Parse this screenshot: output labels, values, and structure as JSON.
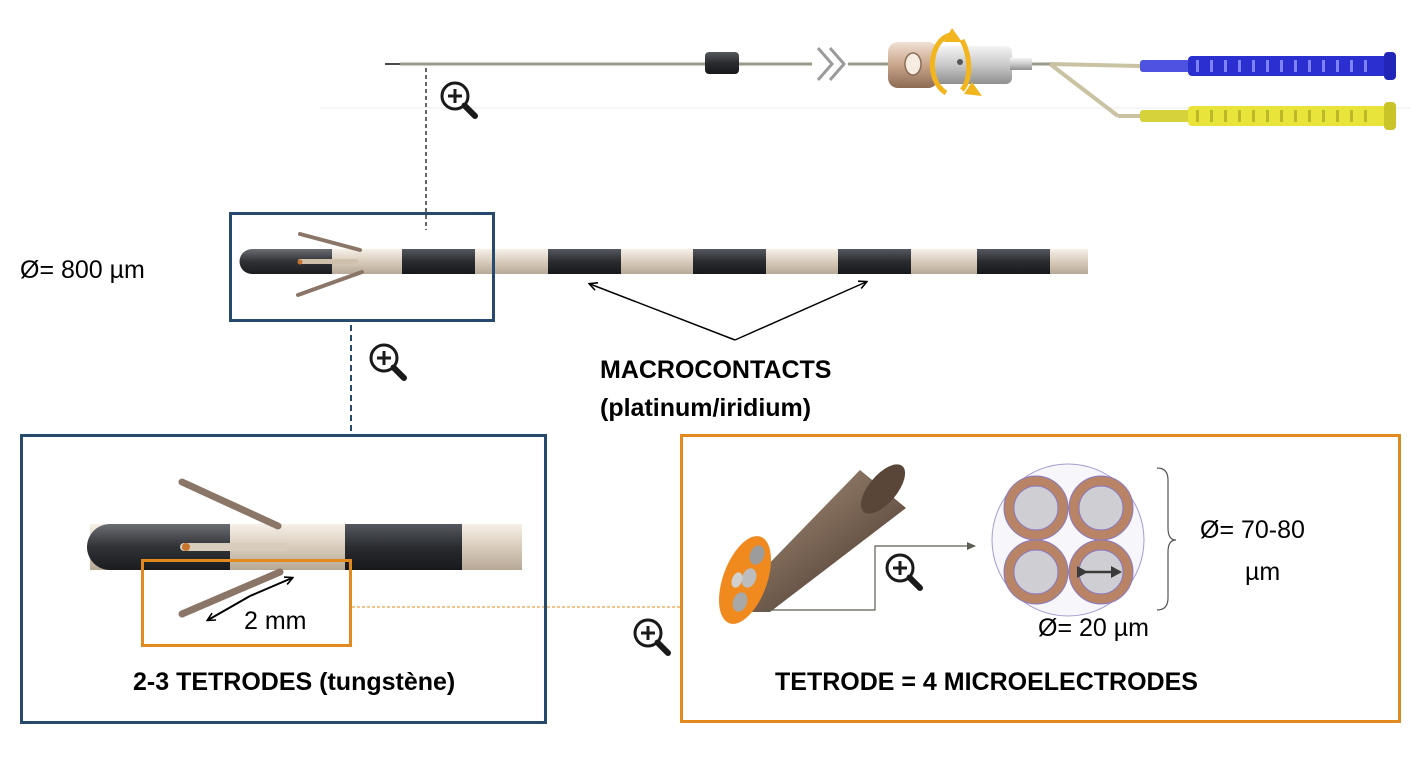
{
  "labels": {
    "probe_diameter": "Ø= 800 µm",
    "macrocontacts_title": "MACROCONTACTS",
    "macrocontacts_material": "(platinum/iridium)",
    "tetrode_spacing": "2 mm",
    "tetrodes_caption": "2-3 TETRODES (tungstène)",
    "bundle_diameter_line1": "Ø= 70-80",
    "bundle_diameter_line2": "µm",
    "wire_diameter": "Ø= 20 µm",
    "tetrode_caption": "TETRODE = 4 MICROELECTRODES"
  },
  "icons": [
    "zoom-in-icon",
    "zoom-in-icon",
    "zoom-in-icon",
    "zoom-in-icon"
  ],
  "colors": {
    "dark_box": "#254a6e",
    "orange_box": "#e38a1e",
    "contact_dark": "#2d2f33",
    "shaft_light": "#e4d9cc",
    "wire_copper": "#b98466",
    "connector_blue": "#2b2fd0",
    "connector_yellow": "#e8e43a",
    "rotation_arrow": "#f2b51e"
  }
}
